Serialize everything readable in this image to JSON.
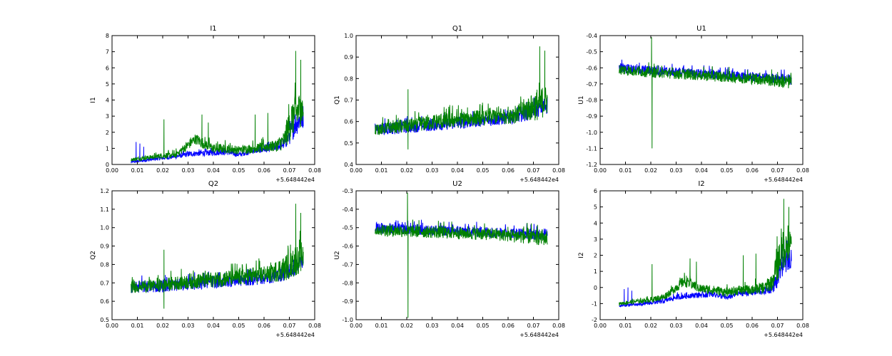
{
  "chart_data": [
    {
      "type": "line",
      "title": "I1",
      "xlabel": "",
      "ylabel": "I1",
      "x_offset_label": "+5.648442e4",
      "xlim": [
        0.0,
        0.08
      ],
      "ylim": [
        0,
        8
      ],
      "xticks": [
        "0.00",
        "0.01",
        "0.02",
        "0.03",
        "0.04",
        "0.05",
        "0.06",
        "0.07",
        "0.08"
      ],
      "yticks": [
        "0",
        "1",
        "2",
        "3",
        "4",
        "5",
        "6",
        "7",
        "8"
      ],
      "grid": false,
      "series": [
        {
          "color": "#0000ff",
          "x": [
            0.0075,
            0.01,
            0.015,
            0.02,
            0.025,
            0.03,
            0.035,
            0.04,
            0.045,
            0.05,
            0.055,
            0.06,
            0.065,
            0.068,
            0.07,
            0.072,
            0.0755
          ],
          "y": [
            0.15,
            0.2,
            0.3,
            0.4,
            0.5,
            0.65,
            0.7,
            0.75,
            0.8,
            0.6,
            0.85,
            0.95,
            1.1,
            1.3,
            1.8,
            2.5,
            3.0
          ],
          "noise": [
            0.15,
            0.2,
            0.2,
            0.25,
            0.3,
            0.35,
            0.35,
            0.4,
            0.4,
            0.3,
            0.4,
            0.45,
            0.5,
            0.7,
            1.2,
            1.6,
            1.5
          ],
          "spikes": [
            [
              0.0095,
              1.4
            ],
            [
              0.011,
              1.3
            ],
            [
              0.0125,
              1.1
            ]
          ]
        },
        {
          "color": "#008000",
          "x": [
            0.0075,
            0.01,
            0.015,
            0.02,
            0.025,
            0.03,
            0.033,
            0.035,
            0.04,
            0.045,
            0.05,
            0.055,
            0.06,
            0.065,
            0.068,
            0.07,
            0.072,
            0.0755
          ],
          "y": [
            0.3,
            0.35,
            0.45,
            0.55,
            0.6,
            1.2,
            1.6,
            1.4,
            1.0,
            1.0,
            0.9,
            1.0,
            1.1,
            1.2,
            1.5,
            2.5,
            3.2,
            3.5
          ],
          "noise": [
            0.2,
            0.25,
            0.3,
            0.35,
            0.4,
            0.6,
            0.7,
            0.7,
            0.6,
            0.6,
            0.55,
            0.6,
            0.7,
            0.8,
            1.2,
            2.2,
            2.6,
            2.0
          ],
          "spikes": [
            [
              0.0205,
              2.8
            ],
            [
              0.0355,
              3.1
            ],
            [
              0.038,
              2.6
            ],
            [
              0.0565,
              3.1
            ],
            [
              0.0615,
              3.2
            ],
            [
              0.0725,
              7.05
            ],
            [
              0.0745,
              6.5
            ]
          ]
        }
      ]
    },
    {
      "type": "line",
      "title": "Q1",
      "xlabel": "",
      "ylabel": "Q1",
      "x_offset_label": "+5.648442e4",
      "xlim": [
        0.0,
        0.08
      ],
      "ylim": [
        0.4,
        1.0
      ],
      "xticks": [
        "0.00",
        "0.01",
        "0.02",
        "0.03",
        "0.04",
        "0.05",
        "0.06",
        "0.07",
        "0.08"
      ],
      "yticks": [
        "0.4",
        "0.5",
        "0.6",
        "0.7",
        "0.8",
        "0.9",
        "1.0"
      ],
      "grid": false,
      "series": [
        {
          "color": "#0000ff",
          "x": [
            0.0075,
            0.015,
            0.025,
            0.035,
            0.045,
            0.055,
            0.062,
            0.068,
            0.072,
            0.0755
          ],
          "y": [
            0.565,
            0.57,
            0.58,
            0.59,
            0.6,
            0.61,
            0.62,
            0.64,
            0.66,
            0.68
          ],
          "noise": [
            0.06,
            0.06,
            0.06,
            0.06,
            0.06,
            0.06,
            0.06,
            0.07,
            0.08,
            0.09
          ],
          "spikes": []
        },
        {
          "color": "#008000",
          "x": [
            0.0075,
            0.015,
            0.02,
            0.025,
            0.035,
            0.045,
            0.055,
            0.062,
            0.068,
            0.072,
            0.0755
          ],
          "y": [
            0.565,
            0.575,
            0.58,
            0.59,
            0.605,
            0.615,
            0.625,
            0.635,
            0.66,
            0.68,
            0.7
          ],
          "noise": [
            0.06,
            0.06,
            0.07,
            0.07,
            0.08,
            0.08,
            0.08,
            0.09,
            0.12,
            0.15,
            0.14
          ],
          "spikes": [
            [
              0.0205,
              0.75
            ],
            [
              0.0205,
              0.47
            ],
            [
              0.0725,
              0.95
            ],
            [
              0.0745,
              0.93
            ]
          ]
        }
      ]
    },
    {
      "type": "line",
      "title": "U1",
      "xlabel": "",
      "ylabel": "U1",
      "x_offset_label": "+5.648442e4",
      "xlim": [
        0.0,
        0.08
      ],
      "ylim": [
        -1.2,
        -0.4
      ],
      "xticks": [
        "0.00",
        "0.01",
        "0.02",
        "0.03",
        "0.04",
        "0.05",
        "0.06",
        "0.07",
        "0.08"
      ],
      "yticks": [
        "-0.4",
        "-0.5",
        "-0.6",
        "-0.7",
        "-0.8",
        "-0.9",
        "-1.0",
        "-1.1",
        "-1.2"
      ],
      "grid": false,
      "series": [
        {
          "color": "#0000ff",
          "x": [
            0.0075,
            0.015,
            0.025,
            0.035,
            0.045,
            0.055,
            0.065,
            0.0755
          ],
          "y": [
            -0.6,
            -0.61,
            -0.62,
            -0.63,
            -0.64,
            -0.65,
            -0.66,
            -0.67
          ],
          "noise": [
            0.07,
            0.06,
            0.06,
            0.06,
            0.06,
            0.06,
            0.06,
            0.07
          ],
          "spikes": []
        },
        {
          "color": "#008000",
          "x": [
            0.0075,
            0.015,
            0.025,
            0.035,
            0.045,
            0.055,
            0.065,
            0.0755
          ],
          "y": [
            -0.61,
            -0.62,
            -0.63,
            -0.64,
            -0.65,
            -0.66,
            -0.67,
            -0.69
          ],
          "noise": [
            0.07,
            0.07,
            0.07,
            0.07,
            0.07,
            0.07,
            0.08,
            0.09
          ],
          "spikes": [
            [
              0.0203,
              -0.41
            ],
            [
              0.0205,
              -1.1
            ]
          ]
        }
      ]
    },
    {
      "type": "line",
      "title": "Q2",
      "xlabel": "",
      "ylabel": "Q2",
      "x_offset_label": "+5.648442e4",
      "xlim": [
        0.0,
        0.08
      ],
      "ylim": [
        0.5,
        1.2
      ],
      "xticks": [
        "0.00",
        "0.01",
        "0.02",
        "0.03",
        "0.04",
        "0.05",
        "0.06",
        "0.07",
        "0.08"
      ],
      "yticks": [
        "0.5",
        "0.6",
        "0.7",
        "0.8",
        "0.9",
        "1.0",
        "1.1",
        "1.2"
      ],
      "grid": false,
      "series": [
        {
          "color": "#0000ff",
          "x": [
            0.0075,
            0.015,
            0.025,
            0.035,
            0.045,
            0.055,
            0.062,
            0.068,
            0.072,
            0.0755
          ],
          "y": [
            0.68,
            0.68,
            0.69,
            0.7,
            0.71,
            0.72,
            0.73,
            0.75,
            0.78,
            0.82
          ],
          "noise": [
            0.07,
            0.07,
            0.07,
            0.07,
            0.07,
            0.07,
            0.07,
            0.08,
            0.09,
            0.1
          ],
          "spikes": []
        },
        {
          "color": "#008000",
          "x": [
            0.0075,
            0.015,
            0.02,
            0.025,
            0.035,
            0.045,
            0.055,
            0.062,
            0.068,
            0.072,
            0.0755
          ],
          "y": [
            0.68,
            0.685,
            0.69,
            0.7,
            0.715,
            0.725,
            0.74,
            0.75,
            0.78,
            0.82,
            0.85
          ],
          "noise": [
            0.07,
            0.07,
            0.08,
            0.08,
            0.09,
            0.09,
            0.1,
            0.1,
            0.14,
            0.18,
            0.16
          ],
          "spikes": [
            [
              0.0205,
              0.88
            ],
            [
              0.0205,
              0.56
            ],
            [
              0.0725,
              1.13
            ],
            [
              0.0745,
              1.08
            ]
          ]
        }
      ]
    },
    {
      "type": "line",
      "title": "U2",
      "xlabel": "",
      "ylabel": "U2",
      "x_offset_label": "+5.648442e4",
      "xlim": [
        0.0,
        0.08
      ],
      "ylim": [
        -1.0,
        -0.3
      ],
      "xticks": [
        "0.00",
        "0.01",
        "0.02",
        "0.03",
        "0.04",
        "0.05",
        "0.06",
        "0.07",
        "0.08"
      ],
      "yticks": [
        "-0.3",
        "-0.4",
        "-0.5",
        "-0.6",
        "-0.7",
        "-0.8",
        "-0.9",
        "-1.0"
      ],
      "grid": false,
      "series": [
        {
          "color": "#0000ff",
          "x": [
            0.0075,
            0.015,
            0.025,
            0.035,
            0.045,
            0.055,
            0.065,
            0.0755
          ],
          "y": [
            -0.5,
            -0.505,
            -0.51,
            -0.515,
            -0.52,
            -0.525,
            -0.53,
            -0.535
          ],
          "noise": [
            0.07,
            0.06,
            0.06,
            0.06,
            0.06,
            0.06,
            0.06,
            0.07
          ],
          "spikes": []
        },
        {
          "color": "#008000",
          "x": [
            0.0075,
            0.015,
            0.025,
            0.035,
            0.045,
            0.055,
            0.065,
            0.0755
          ],
          "y": [
            -0.51,
            -0.515,
            -0.52,
            -0.525,
            -0.53,
            -0.535,
            -0.545,
            -0.555
          ],
          "noise": [
            0.07,
            0.07,
            0.07,
            0.07,
            0.07,
            0.07,
            0.08,
            0.09
          ],
          "spikes": [
            [
              0.0203,
              -0.31
            ],
            [
              0.0205,
              -0.99
            ]
          ]
        }
      ]
    },
    {
      "type": "line",
      "title": "I2",
      "xlabel": "",
      "ylabel": "I2",
      "x_offset_label": "+5.648442e4",
      "xlim": [
        0.0,
        0.08
      ],
      "ylim": [
        -2,
        6
      ],
      "xticks": [
        "0.00",
        "0.01",
        "0.02",
        "0.03",
        "0.04",
        "0.05",
        "0.06",
        "0.07",
        "0.08"
      ],
      "yticks": [
        "-2",
        "-1",
        "0",
        "1",
        "2",
        "3",
        "4",
        "5",
        "6"
      ],
      "grid": false,
      "series": [
        {
          "color": "#0000ff",
          "x": [
            0.0075,
            0.01,
            0.015,
            0.02,
            0.025,
            0.03,
            0.035,
            0.04,
            0.045,
            0.05,
            0.055,
            0.06,
            0.065,
            0.068,
            0.07,
            0.072,
            0.0755
          ],
          "y": [
            -1.15,
            -1.1,
            -1.05,
            -0.95,
            -0.85,
            -0.6,
            -0.5,
            -0.45,
            -0.4,
            -0.65,
            -0.35,
            -0.3,
            -0.2,
            0.0,
            0.5,
            1.5,
            2.0
          ],
          "noise": [
            0.15,
            0.2,
            0.2,
            0.25,
            0.3,
            0.35,
            0.35,
            0.4,
            0.4,
            0.3,
            0.4,
            0.45,
            0.5,
            0.7,
            1.2,
            1.6,
            1.5
          ],
          "spikes": [
            [
              0.0095,
              -0.1
            ],
            [
              0.011,
              0.0
            ],
            [
              0.0125,
              -0.2
            ]
          ]
        },
        {
          "color": "#008000",
          "x": [
            0.0075,
            0.01,
            0.015,
            0.02,
            0.025,
            0.03,
            0.033,
            0.035,
            0.04,
            0.045,
            0.05,
            0.055,
            0.06,
            0.065,
            0.068,
            0.07,
            0.072,
            0.0755
          ],
          "y": [
            -1.0,
            -0.95,
            -0.85,
            -0.75,
            -0.6,
            0.0,
            0.4,
            0.3,
            -0.1,
            -0.15,
            -0.3,
            -0.15,
            -0.1,
            0.0,
            0.4,
            1.5,
            2.4,
            2.6
          ],
          "noise": [
            0.2,
            0.25,
            0.3,
            0.35,
            0.4,
            0.6,
            0.7,
            0.7,
            0.6,
            0.6,
            0.55,
            0.6,
            0.7,
            0.8,
            1.2,
            2.2,
            2.6,
            2.0
          ],
          "spikes": [
            [
              0.0205,
              1.45
            ],
            [
              0.0355,
              1.8
            ],
            [
              0.038,
              1.6
            ],
            [
              0.0565,
              2.0
            ],
            [
              0.0615,
              2.1
            ],
            [
              0.0725,
              5.5
            ],
            [
              0.0745,
              5.0
            ]
          ]
        }
      ]
    }
  ]
}
